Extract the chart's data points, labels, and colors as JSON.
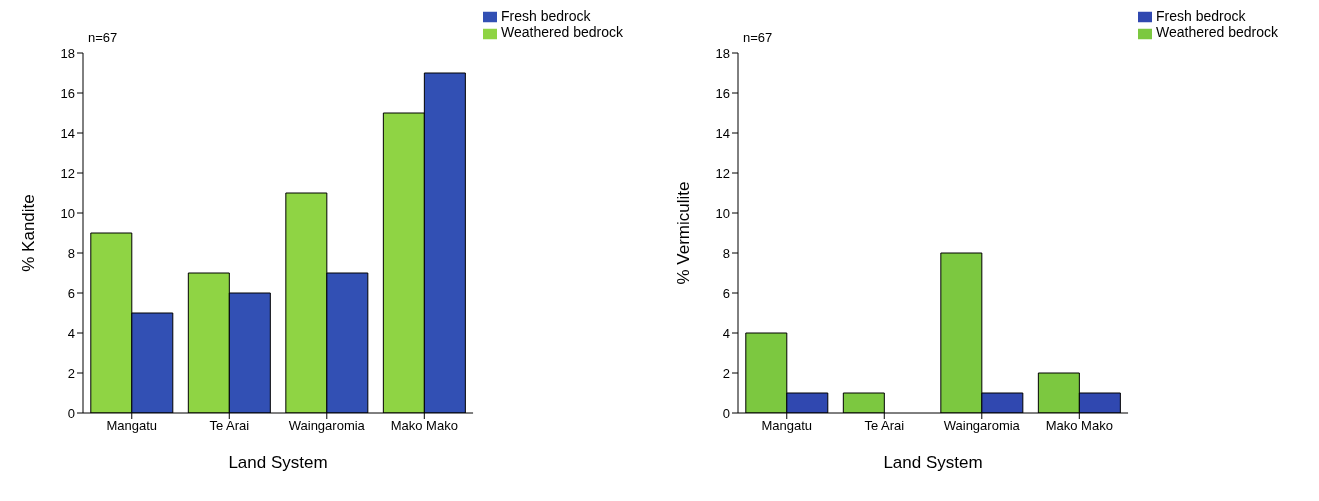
{
  "chart_data": [
    {
      "type": "bar",
      "xlabel": "Land System",
      "ylabel": "% Kandite",
      "annotations": [
        "n=67"
      ],
      "categories": [
        "Mangatu",
        "Te Arai",
        "Waingaromia",
        "Mako Mako"
      ],
      "series": [
        {
          "name": "Weathered bedrock",
          "color": "#8fd444",
          "values": [
            9,
            7,
            11,
            15
          ]
        },
        {
          "name": "Fresh bedrock",
          "color": "#3250b4",
          "values": [
            5,
            6,
            7,
            17
          ]
        }
      ],
      "ylim": [
        0,
        18
      ],
      "yticks": [
        0,
        2,
        4,
        6,
        8,
        10,
        12,
        14,
        16,
        18
      ],
      "legend": "top right"
    },
    {
      "type": "bar",
      "xlabel": "Land System",
      "ylabel": "% Vermiculite",
      "annotations": [
        "n=67"
      ],
      "categories": [
        "Mangatu",
        "Te Arai",
        "Waingaromia",
        "Mako Mako"
      ],
      "series": [
        {
          "name": "Weathered bedrock",
          "color": "#7cc840",
          "values": [
            4,
            1,
            8,
            2
          ]
        },
        {
          "name": "Fresh bedrock",
          "color": "#3048b0",
          "values": [
            1,
            0,
            1,
            1
          ]
        }
      ],
      "ylim": [
        0,
        18
      ],
      "yticks": [
        0,
        2,
        4,
        6,
        8,
        10,
        12,
        14,
        16,
        18
      ],
      "legend": "top right"
    }
  ]
}
